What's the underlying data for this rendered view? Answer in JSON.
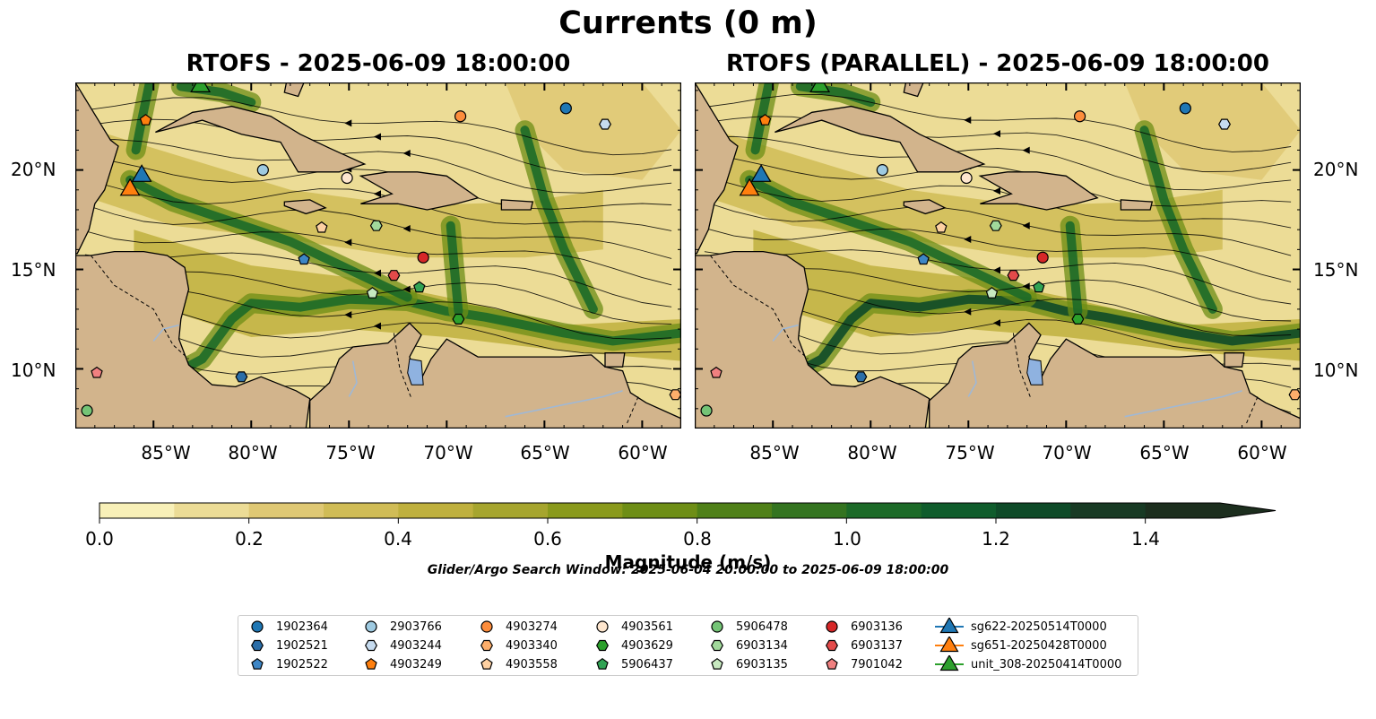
{
  "figure": {
    "title": "Currents (0 m)",
    "left_panel_title": "RTOFS - 2025-06-09 18:00:00",
    "right_panel_title": "RTOFS (PARALLEL) - 2025-06-09 18:00:00"
  },
  "map": {
    "lon_range": [
      -89,
      -58
    ],
    "lat_range": [
      7,
      24.4
    ],
    "lon_ticks": [
      "85°W",
      "80°W",
      "75°W",
      "70°W",
      "65°W",
      "60°W"
    ],
    "lon_tick_values": [
      -85,
      -80,
      -75,
      -70,
      -65,
      -60
    ],
    "lat_ticks": [
      "20°N",
      "15°N",
      "10°N"
    ],
    "lat_tick_values": [
      20,
      15,
      10
    ],
    "colors": {
      "land": "#d2b48c",
      "lakes": "#8fb2e0",
      "rivers": "#9fb8d6",
      "coast": "#000000"
    }
  },
  "colorbar": {
    "label": "Magnitude (m/s)",
    "tick_labels": [
      "0.0",
      "0.2",
      "0.4",
      "0.6",
      "0.8",
      "1.0",
      "1.2",
      "1.4"
    ],
    "tick_values": [
      0,
      0.2,
      0.4,
      0.6,
      0.8,
      1.0,
      1.2,
      1.4
    ],
    "range": [
      0,
      1.5
    ],
    "extend": "max",
    "colors": [
      "#f8f0b8",
      "#ecdc96",
      "#dfc874",
      "#d0bc56",
      "#bfb03e",
      "#a6a52e",
      "#8a9a1c",
      "#6e8e16",
      "#4f8018",
      "#347420",
      "#1c6a28",
      "#0f5c2c",
      "#0e4a28",
      "#183a24",
      "#1c2e1e"
    ]
  },
  "search_window": "Glider/Argo Search Window: 2025-06-04 20:00:00 to 2025-06-09 18:00:00",
  "legend": [
    {
      "label": "1902364",
      "marker": "circle",
      "color": "#1f77b4"
    },
    {
      "label": "1902521",
      "marker": "hexagon",
      "color": "#2b6ea8"
    },
    {
      "label": "1902522",
      "marker": "pentagon",
      "color": "#3d86c6"
    },
    {
      "label": "2903766",
      "marker": "circle",
      "color": "#9ecae1"
    },
    {
      "label": "4903244",
      "marker": "hexagon",
      "color": "#c6dbef"
    },
    {
      "label": "4903249",
      "marker": "pentagon",
      "color": "#ff7f0e"
    },
    {
      "label": "4903274",
      "marker": "circle",
      "color": "#fd8d3c"
    },
    {
      "label": "4903340",
      "marker": "hexagon",
      "color": "#fdae6b"
    },
    {
      "label": "4903558",
      "marker": "pentagon",
      "color": "#fdd0a2"
    },
    {
      "label": "4903561",
      "marker": "circle",
      "color": "#fee6ce"
    },
    {
      "label": "4903629",
      "marker": "hexagon",
      "color": "#2ca02c"
    },
    {
      "label": "5906437",
      "marker": "pentagon",
      "color": "#31a354"
    },
    {
      "label": "5906478",
      "marker": "circle",
      "color": "#74c476"
    },
    {
      "label": "6903134",
      "marker": "hexagon",
      "color": "#a1d99b"
    },
    {
      "label": "6903135",
      "marker": "pentagon",
      "color": "#c7e9c0"
    },
    {
      "label": "6903136",
      "marker": "circle",
      "color": "#d62728"
    },
    {
      "label": "6903137",
      "marker": "hexagon",
      "color": "#e34a4a"
    },
    {
      "label": "7901042",
      "marker": "pentagon",
      "color": "#f08080"
    },
    {
      "label": "sg622-20250514T0000",
      "marker": "triangle",
      "color": "#1f77b4"
    },
    {
      "label": "sg651-20250428T0000",
      "marker": "triangle",
      "color": "#ff7f0e"
    },
    {
      "label": "unit_308-20250414T0000",
      "marker": "triangle",
      "color": "#2ca02c"
    }
  ],
  "argo_floats": [
    {
      "id": "1902364",
      "lon": -63.9,
      "lat": 23.1
    },
    {
      "id": "1902521",
      "lon": -80.5,
      "lat": 9.6
    },
    {
      "id": "1902522",
      "lon": -77.3,
      "lat": 15.5
    },
    {
      "id": "2903766",
      "lon": -79.4,
      "lat": 20.0
    },
    {
      "id": "4903244",
      "lon": -61.9,
      "lat": 22.3
    },
    {
      "id": "4903249",
      "lon": -85.4,
      "lat": 22.5
    },
    {
      "id": "4903274",
      "lon": -69.3,
      "lat": 22.7
    },
    {
      "id": "4903340",
      "lon": -58.3,
      "lat": 8.7
    },
    {
      "id": "4903558",
      "lon": -76.4,
      "lat": 17.1
    },
    {
      "id": "4903561",
      "lon": -75.1,
      "lat": 19.6
    },
    {
      "id": "4903629",
      "lon": -69.4,
      "lat": 12.5
    },
    {
      "id": "5906437",
      "lon": -71.4,
      "lat": 14.1
    },
    {
      "id": "5906478",
      "lon": -88.4,
      "lat": 7.9
    },
    {
      "id": "6903134",
      "lon": -73.6,
      "lat": 17.2
    },
    {
      "id": "6903135",
      "lon": -73.8,
      "lat": 13.8
    },
    {
      "id": "6903136",
      "lon": -71.2,
      "lat": 15.6
    },
    {
      "id": "6903137",
      "lon": -72.7,
      "lat": 14.7
    },
    {
      "id": "7901042",
      "lon": -87.9,
      "lat": 9.8
    }
  ],
  "gliders": [
    {
      "id": "sg622-20250514T0000",
      "lon": -85.6,
      "lat": 19.7
    },
    {
      "id": "sg651-20250428T0000",
      "lon": -86.2,
      "lat": 19.0
    },
    {
      "id": "unit_308-20250414T0000",
      "lon": -82.6,
      "lat": 24.2
    }
  ]
}
